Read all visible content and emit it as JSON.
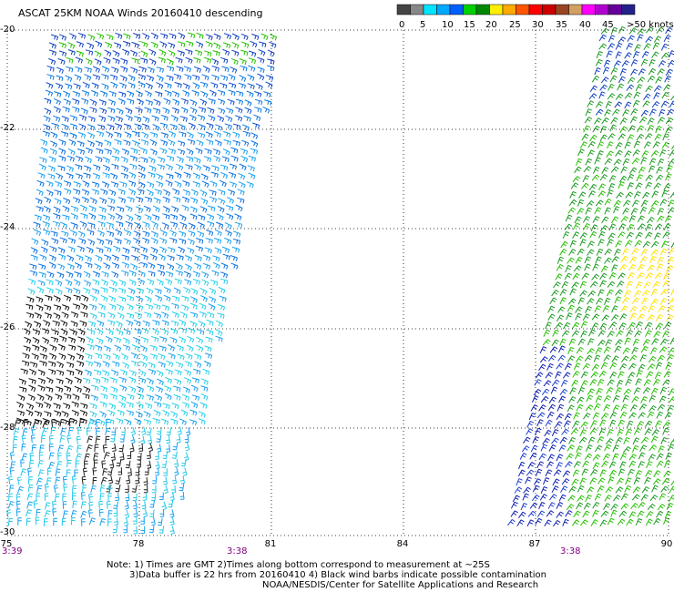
{
  "title": "ASCAT 25KM NOAA Winds 20160410 descending",
  "legend": {
    "colors": [
      "#444444",
      "#888888",
      "#00e5ff",
      "#00a8ff",
      "#0060ff",
      "#00d000",
      "#008800",
      "#ffee00",
      "#ffaa00",
      "#ff5500",
      "#ff0000",
      "#cc0000",
      "#994422",
      "#d2a060",
      "#ff00ff",
      "#b000d0",
      "#660099",
      "#222288"
    ],
    "labels": [
      "0",
      "5",
      "10",
      "15",
      "20",
      "25",
      "30",
      "35",
      "40",
      "45",
      ">50 knots"
    ]
  },
  "axes": {
    "lat_ticks": [
      "-20",
      "-22",
      "-24",
      "-26",
      "-28",
      "-30"
    ],
    "lon_ticks": [
      "75",
      "78",
      "81",
      "84",
      "87",
      "90"
    ]
  },
  "time_labels": [
    "3:39",
    "3:38",
    "3:38"
  ],
  "notes": [
    "Note: 1) Times are GMT 2)Times along bottom correspond to measurement at ~25S",
    "3)Data buffer is 22 hrs from 20160410 4) Black wind barbs indicate possible contamination",
    "NOAA/NESDIS/Center for Satellite Applications and Research"
  ],
  "map_data": {
    "lon_range": [
      75,
      90
    ],
    "lat_range": [
      -30,
      -20
    ],
    "swaths": [
      {
        "name": "west",
        "dominant_speeds_knots": [
          "10-15",
          "5-10",
          "15-20"
        ]
      },
      {
        "name": "east",
        "dominant_speeds_knots": [
          "15-20",
          "20-25",
          "10-15",
          "25-30"
        ]
      }
    ]
  }
}
